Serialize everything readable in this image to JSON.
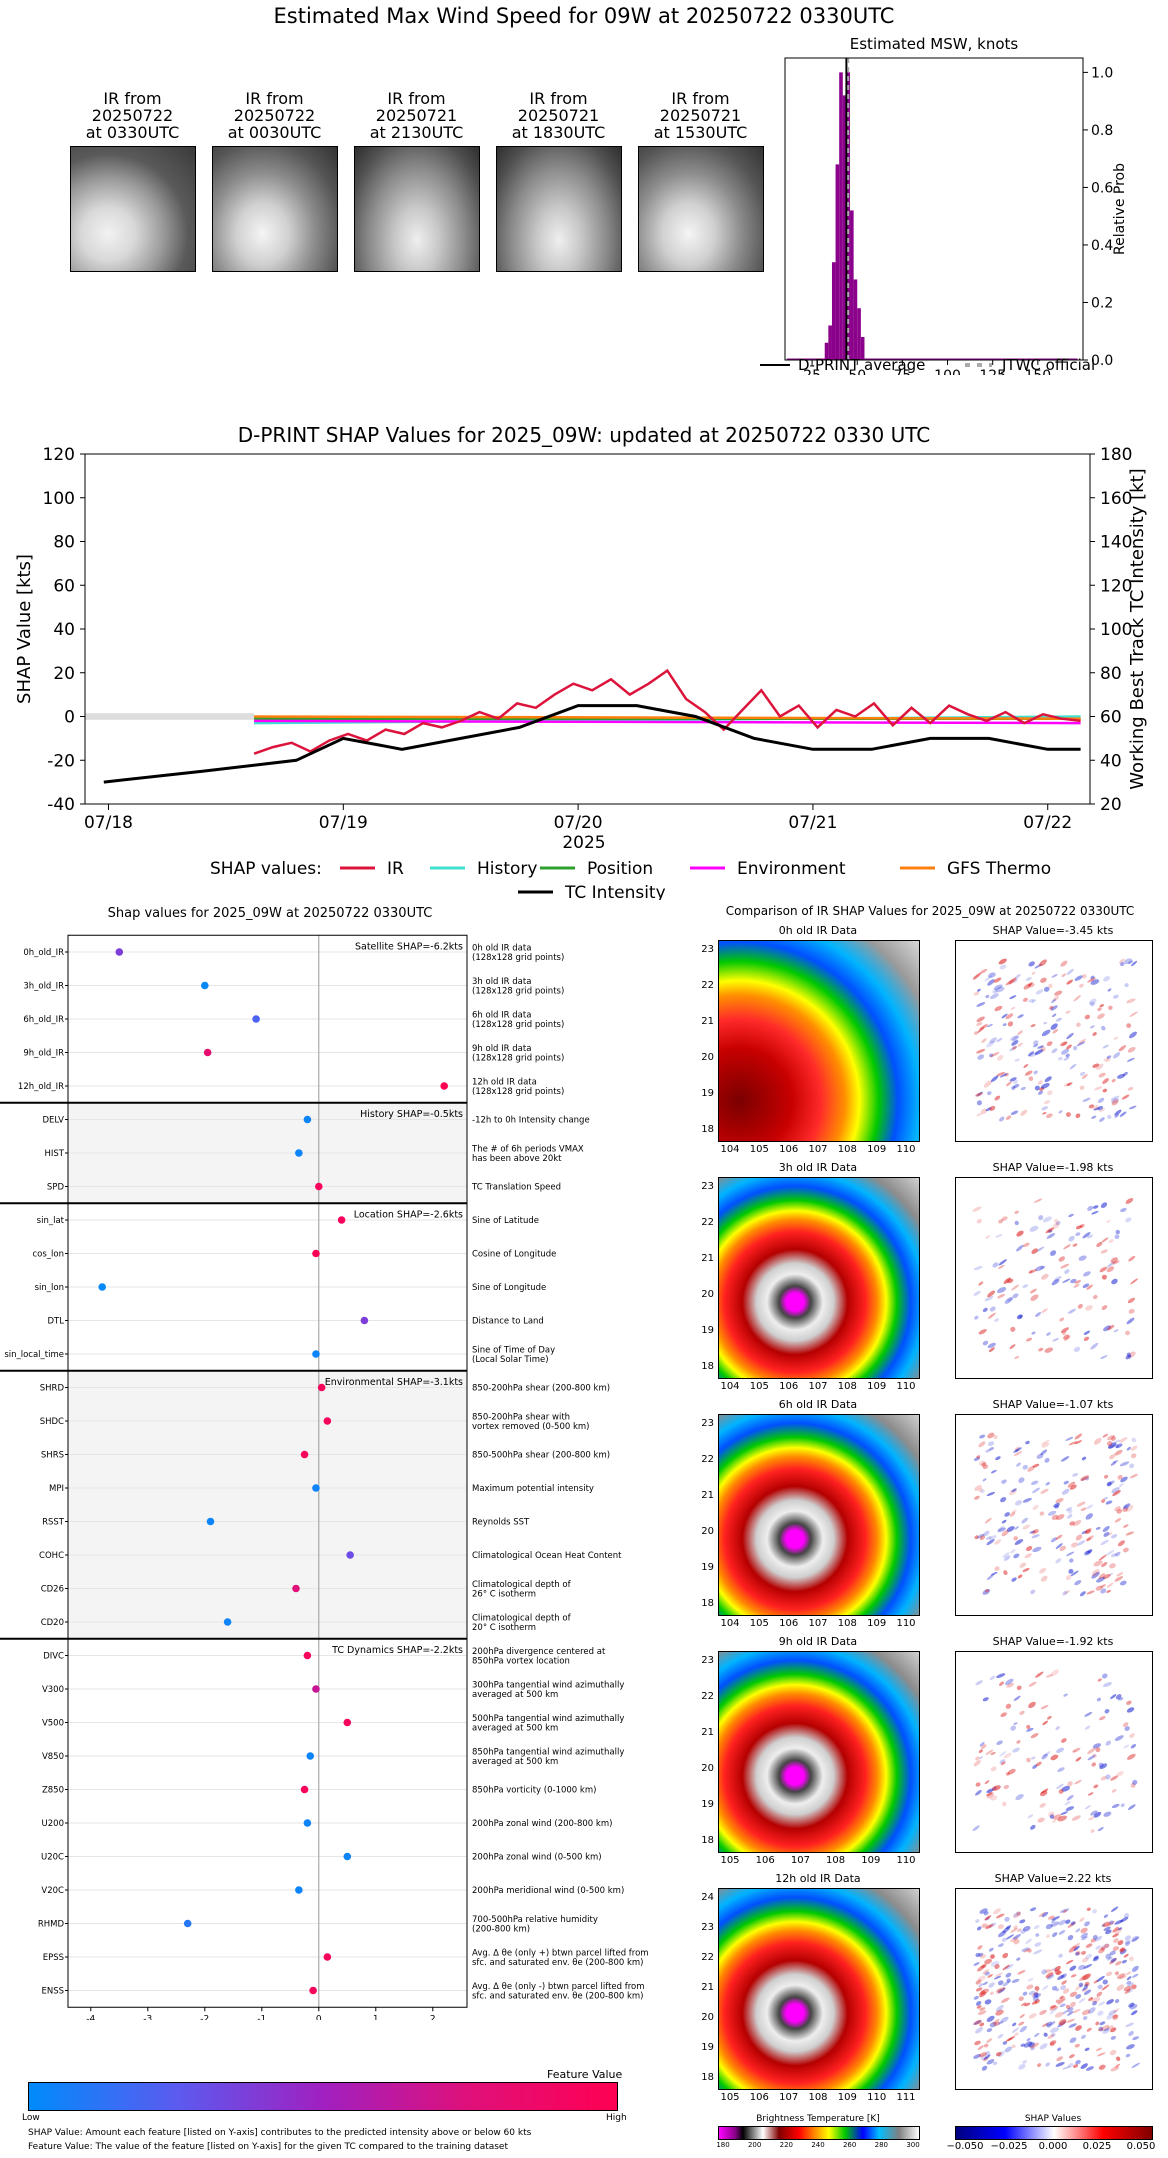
{
  "top": {
    "title": "Estimated Max Wind Speed for 09W at 20250722 0330UTC",
    "ir_thumbs": [
      {
        "label": "IR from\n20250722\nat 0330UTC"
      },
      {
        "label": "IR from\n20250722\nat 0030UTC"
      },
      {
        "label": "IR from\n20250721\nat 2130UTC"
      },
      {
        "label": "IR from\n20250721\nat 1830UTC"
      },
      {
        "label": "IR from\n20250721\nat 1530UTC"
      }
    ],
    "msw_legend": {
      "average": "D-PRINT average",
      "official": "JTWC official"
    }
  },
  "middle": {
    "legend_title": "SHAP values:",
    "legend_items": [
      "IR",
      "History",
      "Position",
      "Environment",
      "GFS Thermo",
      "TC Intensity"
    ]
  },
  "shap_summary": {
    "title": "Shap values for 2025_09W at 20250722 0330UTC",
    "colorbar_title": "Feature Value",
    "colorbar_low": "Low",
    "colorbar_high": "High",
    "footnote1": "SHAP Value: Amount each feature [listed on Y-axis] contributes to the predicted intensity above or below 60 kts",
    "footnote2": "Feature Value: The value of the feature [listed on Y-axis] for the given TC compared to the training dataset",
    "sections": [
      {
        "title": "Satellite SHAP=-6.2kts"
      },
      {
        "title": "History SHAP=-0.5kts"
      },
      {
        "title": "Location SHAP=-2.6kts"
      },
      {
        "title": "Environmental SHAP=-3.1kts"
      },
      {
        "title": "TC Dynamics SHAP=-2.2kts"
      }
    ]
  },
  "ir_compare": {
    "title": "Comparison of IR SHAP Values for 2025_09W at 20250722 0330UTC",
    "panels": [
      {
        "ir_title": "0h old IR Data",
        "shap_title": "SHAP Value=-3.45 kts"
      },
      {
        "ir_title": "3h old IR Data",
        "shap_title": "SHAP Value=-1.98 kts"
      },
      {
        "ir_title": "6h old IR Data",
        "shap_title": "SHAP Value=-1.07 kts"
      },
      {
        "ir_title": "9h old IR Data",
        "shap_title": "SHAP Value=-1.92 kts"
      },
      {
        "ir_title": "12h old IR Data",
        "shap_title": "SHAP Value=2.22 kts"
      }
    ],
    "bt_colorbar": {
      "label": "Brightness Temperature [K]",
      "ticks": [
        "180",
        "200",
        "220",
        "240",
        "260",
        "280",
        "300"
      ]
    },
    "shap_colorbar": {
      "label": "SHAP Values",
      "ticks": [
        "−0.050",
        "−0.025",
        "0.000",
        "0.025",
        "0.050"
      ]
    }
  },
  "colors": {
    "hist_bar": "#8b008b",
    "ir": "#dc143c",
    "history": "#40e0d0",
    "position": "#2ca02c",
    "environment": "#ff00ff",
    "gfs_thermo": "#ff7f0e",
    "tc_intensity": "#000000"
  },
  "chart_data": [
    {
      "type": "bar",
      "title": "Estimated MSW, knots",
      "ylabel": "Relative Prob",
      "xlim": [
        10,
        175
      ],
      "ylim": [
        0,
        1.05
      ],
      "xticks": [
        25,
        50,
        75,
        100,
        125,
        150
      ],
      "yticks": [
        0.0,
        0.2,
        0.4,
        0.6,
        0.8,
        1.0
      ],
      "bin_width": 2,
      "bins": [
        [
          33,
          0.06
        ],
        [
          35,
          0.12
        ],
        [
          37,
          0.34
        ],
        [
          39,
          0.68
        ],
        [
          41,
          1.0
        ],
        [
          43,
          0.92
        ],
        [
          45,
          1.0
        ],
        [
          47,
          0.52
        ],
        [
          49,
          0.28
        ],
        [
          51,
          0.18
        ],
        [
          53,
          0.08
        ]
      ],
      "dpRINT_average": 44,
      "jtwc_official": 45,
      "legend": [
        "D-PRINT average",
        "JTWC official"
      ]
    },
    {
      "type": "line",
      "title": "D-PRINT SHAP Values for 2025_09W: updated at 20250722 0330 UTC",
      "xlabel": "2025",
      "ylabel": "SHAP Value [kts]",
      "y2label": "Working Best Track TC Intensity [kt]",
      "xticks": [
        "07/18",
        "07/19",
        "07/20",
        "07/21",
        "07/22"
      ],
      "ylim": [
        -40,
        120
      ],
      "yticks": [
        -40,
        -20,
        0,
        20,
        40,
        60,
        80,
        100,
        120
      ],
      "y2lim": [
        20,
        180
      ],
      "y2ticks": [
        20,
        40,
        60,
        80,
        100,
        120,
        140,
        160,
        180
      ],
      "series": [
        {
          "name": "IR",
          "x": [
            18.62,
            18.7,
            18.78,
            18.86,
            18.94,
            19.02,
            19.1,
            19.18,
            19.26,
            19.34,
            19.42,
            19.5,
            19.58,
            19.66,
            19.74,
            19.82,
            19.9,
            19.98,
            20.06,
            20.14,
            20.22,
            20.3,
            20.38,
            20.46,
            20.54,
            20.62,
            20.7,
            20.78,
            20.86,
            20.94,
            21.02,
            21.1,
            21.18,
            21.26,
            21.34,
            21.42,
            21.5,
            21.58,
            21.66,
            21.74,
            21.82,
            21.9,
            21.98,
            22.06,
            22.14
          ],
          "y": [
            -17,
            -14,
            -12,
            -16,
            -11,
            -8,
            -11,
            -6,
            -8,
            -3,
            -5,
            -2,
            2,
            -1,
            6,
            4,
            10,
            15,
            12,
            17,
            10,
            15,
            21,
            8,
            2,
            -6,
            3,
            12,
            0,
            5,
            -5,
            3,
            0,
            6,
            -4,
            4,
            -3,
            5,
            1,
            -2,
            2,
            -3,
            1,
            -1,
            -2
          ]
        },
        {
          "name": "History",
          "x": [
            18.62,
            22.14
          ],
          "y": [
            -3,
            0
          ]
        },
        {
          "name": "Position",
          "x": [
            18.62,
            22.14
          ],
          "y": [
            -1,
            -1
          ]
        },
        {
          "name": "Environment",
          "x": [
            18.62,
            22.14
          ],
          "y": [
            -2,
            -3
          ]
        },
        {
          "name": "GFS Thermo",
          "x": [
            18.62,
            22.14
          ],
          "y": [
            0,
            -1
          ]
        },
        {
          "name": "TC Intensity",
          "axis": "right",
          "x": [
            17.98,
            18.4,
            18.8,
            19.0,
            19.25,
            19.5,
            19.75,
            20.0,
            20.25,
            20.5,
            20.75,
            21.0,
            21.25,
            21.5,
            21.75,
            22.0,
            22.14
          ],
          "y": [
            30,
            35,
            40,
            50,
            45,
            50,
            55,
            65,
            65,
            60,
            50,
            45,
            45,
            50,
            50,
            45,
            45
          ]
        }
      ]
    },
    {
      "type": "scatter",
      "title": "Shap values for 2025_09W at 20250722 0330UTC",
      "xlabel": "SHAP Value [kts]",
      "xlim": [
        -4.4,
        2.6
      ],
      "xticks": [
        -4,
        -3,
        -2,
        -1,
        0,
        1,
        2
      ],
      "features": [
        {
          "name": "0h_old_IR",
          "desc": "0h old IR data\n(128x128 grid points)",
          "shap": -3.5,
          "fv": 0.45
        },
        {
          "name": "3h_old_IR",
          "desc": "3h old IR data\n(128x128 grid points)",
          "shap": -2.0,
          "fv": 0.02
        },
        {
          "name": "6h_old_IR",
          "desc": "6h old IR data\n(128x128 grid points)",
          "shap": -1.1,
          "fv": 0.3
        },
        {
          "name": "9h_old_IR",
          "desc": "9h old IR data\n(128x128 grid points)",
          "shap": -1.95,
          "fv": 0.85
        },
        {
          "name": "12h_old_IR",
          "desc": "12h old IR data\n(128x128 grid points)",
          "shap": 2.2,
          "fv": 1.0
        },
        {
          "name": "DELV",
          "desc": "-12h to 0h Intensity change",
          "shap": -0.2,
          "fv": 0.05
        },
        {
          "name": "HIST",
          "desc": "The # of 6h periods VMAX\nhas been above 20kt",
          "shap": -0.35,
          "fv": 0.05
        },
        {
          "name": "SPD",
          "desc": "TC Translation Speed",
          "shap": 0.0,
          "fv": 0.95
        },
        {
          "name": "sin_lat",
          "desc": "Sine of Latitude",
          "shap": 0.4,
          "fv": 0.95
        },
        {
          "name": "cos_lon",
          "desc": "Cosine of Longitude",
          "shap": -0.05,
          "fv": 0.98
        },
        {
          "name": "sin_lon",
          "desc": "Sine of Longitude",
          "shap": -3.8,
          "fv": 0.02
        },
        {
          "name": "DTL",
          "desc": "Distance to Land",
          "shap": 0.8,
          "fv": 0.45
        },
        {
          "name": "sin_local_time",
          "desc": "Sine of Time of Day\n(Local Solar Time)",
          "shap": -0.05,
          "fv": 0.05
        },
        {
          "name": "SHRD",
          "desc": "850-200hPa shear (200-800 km)",
          "shap": 0.05,
          "fv": 0.95
        },
        {
          "name": "SHDC",
          "desc": "850-200hPa shear with\nvortex removed (0-500 km)",
          "shap": 0.15,
          "fv": 0.95
        },
        {
          "name": "SHRS",
          "desc": "850-500hPa shear (200-800 km)",
          "shap": -0.25,
          "fv": 0.95
        },
        {
          "name": "MPI",
          "desc": "Maximum potential intensity",
          "shap": -0.05,
          "fv": 0.05
        },
        {
          "name": "RSST",
          "desc": "Reynolds SST",
          "shap": -1.9,
          "fv": 0.05
        },
        {
          "name": "COHC",
          "desc": "Climatological Ocean Heat Content",
          "shap": 0.55,
          "fv": 0.4
        },
        {
          "name": "CD26",
          "desc": "Climatological depth of\n26° C isotherm",
          "shap": -0.4,
          "fv": 0.8
        },
        {
          "name": "CD20",
          "desc": "Climatological depth of\n20° C isotherm",
          "shap": -1.6,
          "fv": 0.05
        },
        {
          "name": "DIVC",
          "desc": "200hPa divergence centered at\n850hPa vortex location",
          "shap": -0.2,
          "fv": 0.95
        },
        {
          "name": "V300",
          "desc": "300hPa tangential wind azimuthally\naveraged at 500 km",
          "shap": -0.05,
          "fv": 0.7
        },
        {
          "name": "V500",
          "desc": "500hPa tangential wind azimuthally\naveraged at 500 km",
          "shap": 0.5,
          "fv": 0.95
        },
        {
          "name": "V850",
          "desc": "850hPa tangential wind azimuthally\naveraged at 500 km",
          "shap": -0.15,
          "fv": 0.05
        },
        {
          "name": "Z850",
          "desc": "850hPa vorticity (0-1000 km)",
          "shap": -0.25,
          "fv": 0.95
        },
        {
          "name": "U200",
          "desc": "200hPa zonal wind (200-800 km)",
          "shap": -0.2,
          "fv": 0.05
        },
        {
          "name": "U20C",
          "desc": "200hPa zonal wind (0-500 km)",
          "shap": 0.5,
          "fv": 0.05
        },
        {
          "name": "V20C",
          "desc": "200hPa meridional wind (0-500 km)",
          "shap": -0.35,
          "fv": 0.05
        },
        {
          "name": "RHMD",
          "desc": "700-500hPa relative humidity\n(200-800 km)",
          "shap": -2.3,
          "fv": 0.15
        },
        {
          "name": "EPSS",
          "desc": "Avg. Δ θe (only +) btwn parcel lifted from\nsfc. and saturated env. θe (200-800 km)",
          "shap": 0.15,
          "fv": 0.95
        },
        {
          "name": "ENSS",
          "desc": "Avg. Δ θe (only -) btwn parcel lifted from\nsfc. and saturated env. θe (200-800 km)",
          "shap": -0.1,
          "fv": 0.95
        }
      ]
    }
  ]
}
